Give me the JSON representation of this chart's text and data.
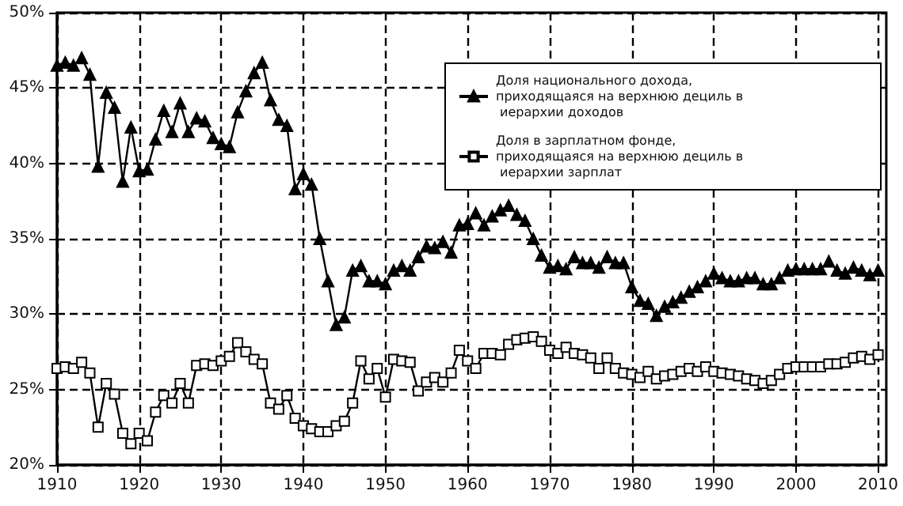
{
  "chart_data": {
    "type": "line",
    "x": [
      1910,
      1911,
      1912,
      1913,
      1914,
      1915,
      1916,
      1917,
      1918,
      1919,
      1920,
      1921,
      1922,
      1923,
      1924,
      1925,
      1926,
      1927,
      1928,
      1929,
      1930,
      1931,
      1932,
      1933,
      1934,
      1935,
      1936,
      1937,
      1938,
      1939,
      1940,
      1941,
      1942,
      1943,
      1944,
      1945,
      1946,
      1947,
      1948,
      1949,
      1950,
      1951,
      1952,
      1953,
      1954,
      1955,
      1956,
      1957,
      1958,
      1959,
      1960,
      1961,
      1962,
      1963,
      1964,
      1965,
      1966,
      1967,
      1968,
      1969,
      1970,
      1971,
      1972,
      1973,
      1974,
      1975,
      1976,
      1977,
      1978,
      1979,
      1980,
      1981,
      1982,
      1983,
      1984,
      1985,
      1986,
      1987,
      1988,
      1989,
      1990,
      1991,
      1992,
      1993,
      1994,
      1995,
      1996,
      1997,
      1998,
      1999,
      2000,
      2001,
      2002,
      2003,
      2004,
      2005,
      2006,
      2007,
      2008,
      2009,
      2010
    ],
    "series": [
      {
        "name": "Доля национального дохода, приходящаяся на верхнюю дециль в иерархии доходов",
        "color": "#000000",
        "marker": "triangle",
        "values": [
          46.5,
          46.7,
          46.5,
          47.0,
          45.9,
          39.8,
          44.7,
          43.7,
          38.8,
          42.4,
          39.5,
          39.6,
          41.6,
          43.5,
          42.1,
          44.0,
          42.1,
          43.0,
          42.8,
          41.7,
          41.3,
          41.1,
          43.4,
          44.8,
          46.0,
          46.7,
          44.2,
          42.9,
          42.5,
          38.3,
          39.3,
          38.6,
          35.0,
          32.2,
          29.3,
          29.8,
          32.9,
          33.2,
          32.2,
          32.2,
          32.0,
          32.9,
          33.2,
          32.9,
          33.8,
          34.5,
          34.4,
          34.8,
          34.1,
          35.9,
          36.0,
          36.7,
          35.9,
          36.5,
          36.9,
          37.2,
          36.6,
          36.2,
          35.0,
          33.9,
          33.1,
          33.2,
          33.0,
          33.8,
          33.4,
          33.4,
          33.1,
          33.8,
          33.4,
          33.4,
          31.8,
          30.9,
          30.7,
          29.9,
          30.5,
          30.8,
          31.1,
          31.5,
          31.8,
          32.2,
          32.7,
          32.4,
          32.2,
          32.2,
          32.4,
          32.4,
          32.0,
          32.0,
          32.4,
          32.9,
          33.0,
          33.0,
          33.0,
          33.0,
          33.5,
          32.9,
          32.7,
          33.1,
          32.9,
          32.6,
          32.9
        ]
      },
      {
        "name": "Доля в зарплатном фонде, приходящаяся на верхнюю дециль в иерархии зарплат",
        "color": "#000000",
        "marker": "square",
        "values": [
          26.4,
          26.5,
          26.4,
          26.8,
          26.1,
          22.5,
          25.4,
          24.7,
          22.1,
          21.4,
          22.1,
          21.6,
          23.5,
          24.6,
          24.1,
          25.4,
          24.1,
          26.6,
          26.7,
          26.6,
          26.9,
          27.2,
          28.1,
          27.5,
          27.0,
          26.7,
          24.1,
          23.7,
          24.6,
          23.1,
          22.6,
          22.4,
          22.2,
          22.2,
          22.6,
          22.9,
          24.1,
          26.9,
          25.7,
          26.4,
          24.5,
          27.0,
          26.9,
          26.8,
          24.9,
          25.5,
          25.8,
          25.5,
          26.1,
          27.6,
          26.9,
          26.4,
          27.4,
          27.4,
          27.3,
          28.0,
          28.3,
          28.4,
          28.5,
          28.2,
          27.6,
          27.4,
          27.8,
          27.4,
          27.3,
          27.1,
          26.4,
          27.1,
          26.4,
          26.1,
          26.0,
          25.8,
          26.2,
          25.7,
          25.9,
          26.0,
          26.2,
          26.4,
          26.2,
          26.5,
          26.2,
          26.1,
          26.0,
          25.9,
          25.7,
          25.6,
          25.4,
          25.6,
          26.0,
          26.4,
          26.5,
          26.5,
          26.5,
          26.5,
          26.7,
          26.7,
          26.8,
          27.1,
          27.2,
          27.0,
          27.3
        ]
      }
    ],
    "xlim": [
      1910,
      2011
    ],
    "xticks": [
      1910,
      1920,
      1930,
      1940,
      1950,
      1960,
      1970,
      1980,
      1990,
      2000,
      2010
    ],
    "ylim": [
      20,
      50
    ],
    "yticks": [
      {
        "value": 20,
        "label": "20%"
      },
      {
        "value": 25,
        "label": "25%"
      },
      {
        "value": 30,
        "label": "30%"
      },
      {
        "value": 35,
        "label": "35%"
      },
      {
        "value": 40,
        "label": "40%"
      },
      {
        "value": 45,
        "label": "45%"
      },
      {
        "value": 50,
        "label": "50%"
      }
    ],
    "grid": true,
    "line_style": "solid",
    "legend": "top right"
  }
}
